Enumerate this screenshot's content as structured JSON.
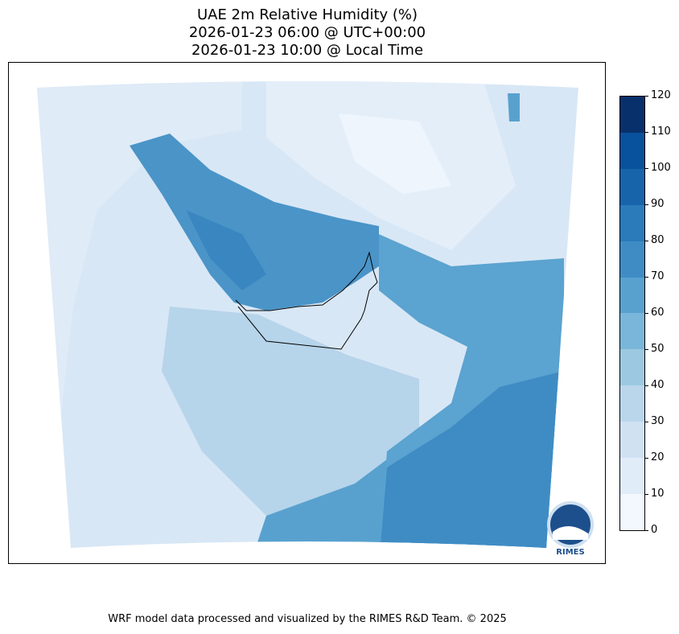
{
  "title": {
    "line1": "UAE 2m Relative Humidity (%)",
    "line2": "2026-01-23 06:00 @ UTC+00:00",
    "line3": "2026-01-23 10:00 @ Local Time"
  },
  "colorbar": {
    "ticks": [
      "0",
      "10",
      "20",
      "30",
      "40",
      "50",
      "60",
      "70",
      "80",
      "90",
      "100",
      "110",
      "120"
    ],
    "colors": [
      "#f3f8fe",
      "#e0ecf8",
      "#d0e1f2",
      "#bad6eb",
      "#9cc9e1",
      "#7ab6d9",
      "#58a1cf",
      "#3f8cc4",
      "#2b7bba",
      "#1764ab",
      "#08519c",
      "#08306b"
    ]
  },
  "logo": {
    "text": "RIMES"
  },
  "footer": "WRF model data processed and visualized by the RIMES R&D Team. © 2025"
}
